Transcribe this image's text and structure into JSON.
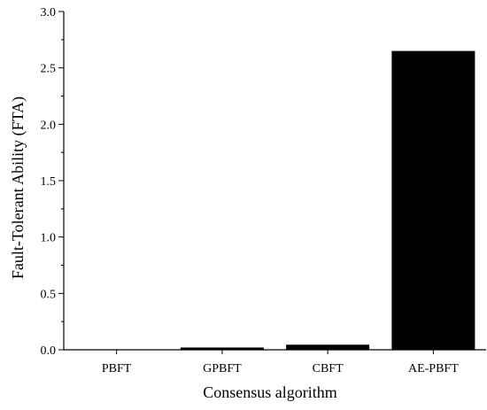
{
  "chart_data": {
    "type": "bar",
    "title": "",
    "xlabel": "Consensus algorithm",
    "ylabel": "Fault-Tolerant Ability (FTA)",
    "categories": [
      "PBFT",
      "GPBFT",
      "CBFT",
      "AE-PBFT"
    ],
    "values": [
      0.0,
      0.02,
      0.045,
      2.65
    ],
    "ylim": [
      0,
      3.0
    ],
    "yticks": [
      "0.0",
      "0.5",
      "1.0",
      "1.5",
      "2.0",
      "2.5",
      "3.0"
    ],
    "grid": false,
    "bar_color": "#000000"
  }
}
